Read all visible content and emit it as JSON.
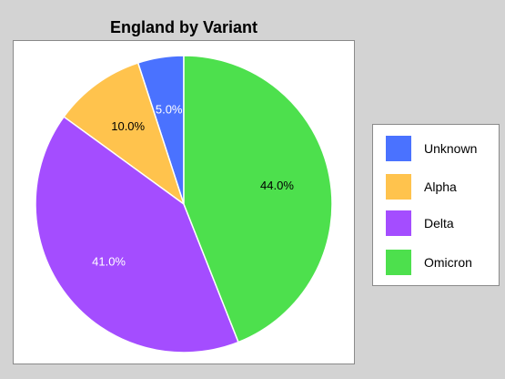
{
  "chart_data": {
    "type": "pie",
    "title": "England by Variant",
    "categories": [
      "Unknown",
      "Alpha",
      "Delta",
      "Omicron"
    ],
    "values": [
      5.0,
      10.0,
      41.0,
      44.0
    ],
    "value_labels": [
      "5.0%",
      "10.0%",
      "41.0%",
      "44.0%"
    ],
    "colors": [
      "#4a72ff",
      "#ffc34d",
      "#a44dff",
      "#4de04d"
    ],
    "label_colors": [
      "#ffffff",
      "#000000",
      "#ffffff",
      "#000000"
    ],
    "start_angle_deg": 90,
    "direction": "counterclockwise",
    "legend": "right"
  }
}
